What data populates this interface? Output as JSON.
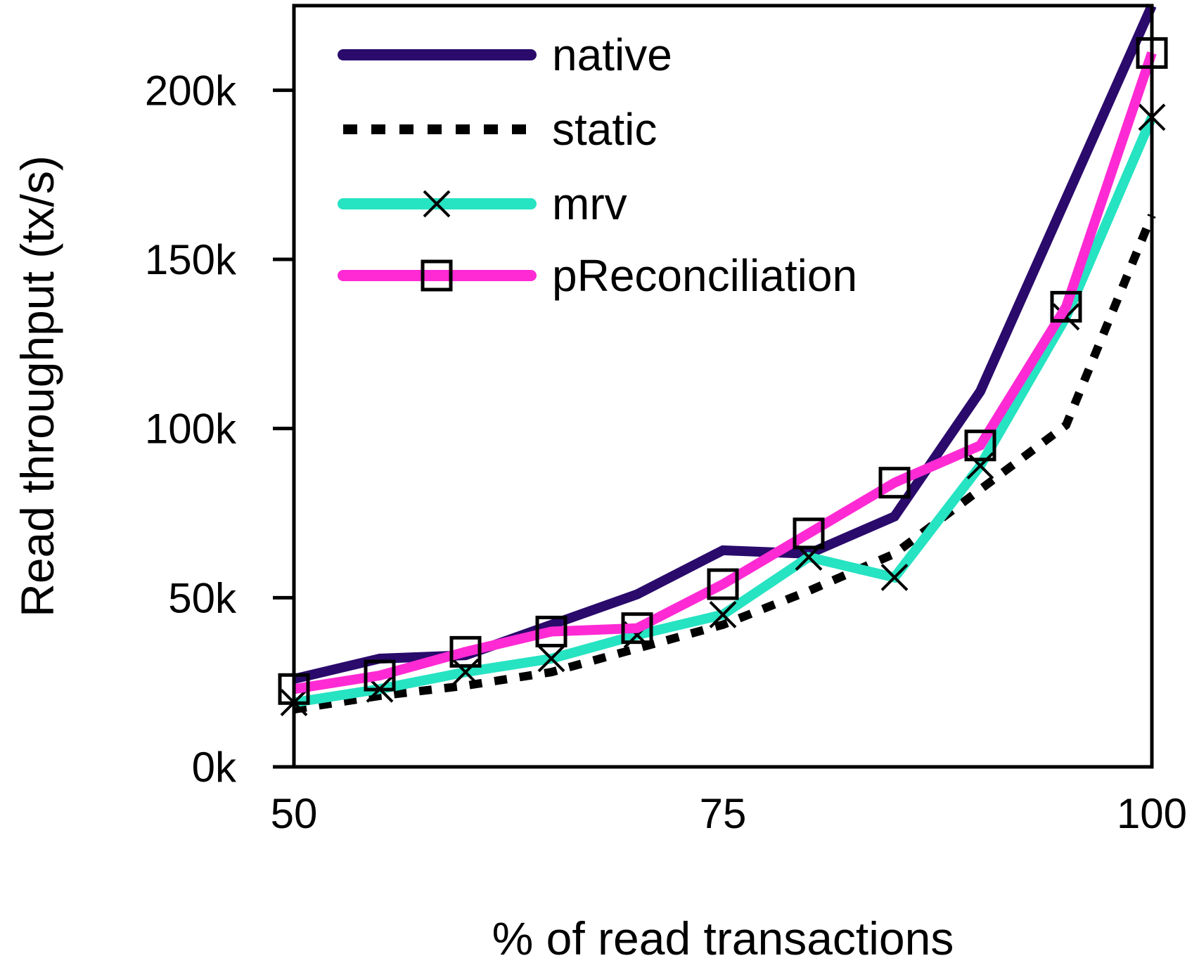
{
  "chart_data": {
    "type": "line",
    "xlabel": "% of read transactions",
    "ylabel": "Read throughput (tx/s)",
    "xlim": [
      50,
      100
    ],
    "ylim": [
      0,
      225000
    ],
    "x_ticks": [
      {
        "value": 50,
        "label": "50"
      },
      {
        "value": 75,
        "label": "75"
      },
      {
        "value": 100,
        "label": "100"
      }
    ],
    "y_ticks": [
      {
        "value": 0,
        "label": "0k"
      },
      {
        "value": 50000,
        "label": "50k"
      },
      {
        "value": 100000,
        "label": "100k"
      },
      {
        "value": 150000,
        "label": "150k"
      },
      {
        "value": 200000,
        "label": "200k"
      }
    ],
    "grid": false,
    "legend_position": "top-left",
    "x": [
      50,
      55,
      60,
      65,
      70,
      75,
      80,
      85,
      90,
      95,
      100
    ],
    "series": [
      {
        "name": "native",
        "color": "#2a0a6b",
        "style": "solid",
        "marker": "none",
        "values": [
          26000,
          32000,
          33000,
          42000,
          51000,
          64000,
          63000,
          74000,
          111000,
          168000,
          225000
        ]
      },
      {
        "name": "static",
        "color": "#000000",
        "style": "dotted",
        "marker": "none",
        "values": [
          17000,
          21000,
          24000,
          28000,
          35000,
          42000,
          52000,
          63000,
          82000,
          101000,
          163000
        ]
      },
      {
        "name": "mrv",
        "color": "#26e3c2",
        "style": "solid",
        "marker": "x",
        "values": [
          19000,
          23000,
          28000,
          32000,
          39000,
          45000,
          62000,
          56000,
          89000,
          133000,
          192000
        ]
      },
      {
        "name": "pReconciliation",
        "color": "#ff2ad4",
        "style": "solid",
        "marker": "square",
        "values": [
          23000,
          27000,
          34000,
          40000,
          41000,
          54000,
          69000,
          84000,
          95000,
          136000,
          211000
        ]
      }
    ]
  }
}
